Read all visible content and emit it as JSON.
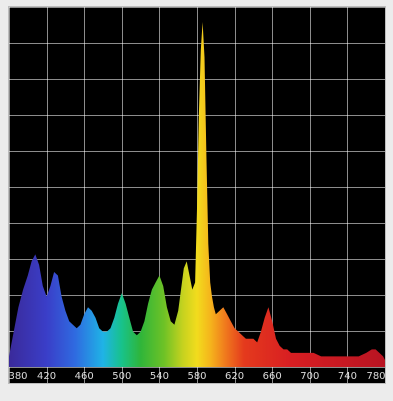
{
  "colors": {
    "background": "#000000",
    "grid": "#ffffff",
    "frame": "#ececec"
  },
  "chart_data": {
    "type": "area",
    "title": "",
    "xlabel": "",
    "ylabel": "",
    "xlim": [
      380,
      780
    ],
    "ylim": [
      0,
      100
    ],
    "grid": true,
    "legend": "none",
    "x_ticks": [
      "380",
      "420",
      "460",
      "500",
      "540",
      "580",
      "620",
      "660",
      "700",
      "740",
      "780"
    ],
    "series": [
      {
        "name": "",
        "x": [
          380,
          385,
          390,
          395,
          400,
          404,
          408,
          412,
          416,
          420,
          424,
          428,
          432,
          436,
          440,
          444,
          448,
          452,
          456,
          460,
          464,
          468,
          472,
          476,
          480,
          484,
          488,
          492,
          496,
          500,
          504,
          508,
          512,
          516,
          520,
          524,
          528,
          532,
          536,
          540,
          544,
          548,
          552,
          556,
          560,
          563,
          566,
          569,
          572,
          575,
          578,
          580,
          582,
          584,
          586,
          588,
          590,
          592,
          594,
          596,
          598,
          600,
          604,
          608,
          612,
          616,
          620,
          624,
          628,
          632,
          636,
          640,
          644,
          648,
          652,
          656,
          660,
          664,
          668,
          672,
          676,
          680,
          688,
          696,
          704,
          712,
          720,
          728,
          736,
          744,
          752,
          760,
          766,
          770,
          774,
          778,
          780
        ],
        "values": [
          3,
          10,
          17,
          22,
          26,
          30,
          32,
          29,
          23,
          20,
          23,
          27,
          26,
          20,
          16,
          13,
          12,
          11,
          12,
          15,
          17,
          16,
          14,
          11,
          10,
          10,
          11,
          14,
          18,
          21,
          18,
          14,
          10,
          9,
          10,
          13,
          18,
          22,
          24,
          26,
          23,
          17,
          13,
          12,
          16,
          22,
          28,
          30,
          26,
          22,
          24,
          45,
          72,
          90,
          98,
          88,
          60,
          35,
          24,
          20,
          17,
          15,
          16,
          17,
          15,
          13,
          11,
          10,
          9,
          8,
          8,
          8,
          7,
          10,
          14,
          17,
          13,
          8,
          6,
          5,
          5,
          4,
          4,
          4,
          4,
          3,
          3,
          3,
          3,
          3,
          3,
          4,
          5,
          5,
          4,
          3,
          2
        ]
      }
    ]
  }
}
